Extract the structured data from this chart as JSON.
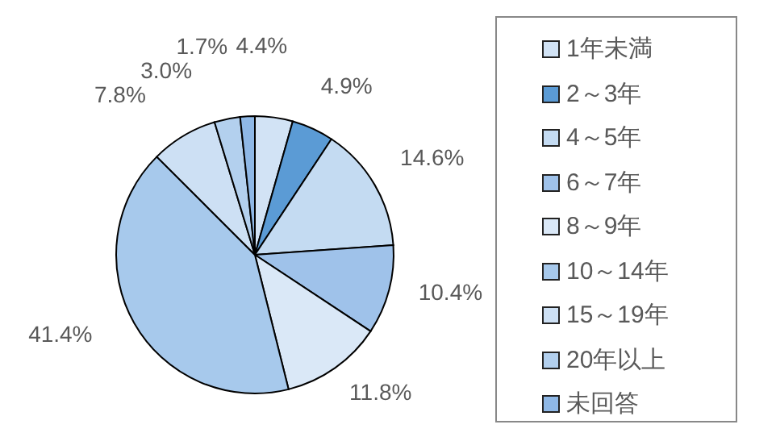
{
  "chart_data": {
    "type": "pie",
    "categories": [
      "1年未満",
      "2～3年",
      "4～5年",
      "6～7年",
      "8～9年",
      "10～14年",
      "15～19年",
      "20年以上",
      "未回答"
    ],
    "values": [
      4.4,
      4.9,
      14.6,
      10.4,
      11.8,
      41.4,
      7.8,
      3.0,
      1.7
    ],
    "value_labels": [
      "4.4%",
      "4.9%",
      "14.6%",
      "10.4%",
      "11.8%",
      "41.4%",
      "7.8%",
      "3.0%",
      "1.7%"
    ],
    "colors": [
      "#d2e3f5",
      "#5b9bd5",
      "#c4dbf2",
      "#9fc2ea",
      "#dae8f7",
      "#a7c9ec",
      "#cde0f4",
      "#b3d0ee",
      "#8fb8e6"
    ],
    "legend": "right"
  }
}
